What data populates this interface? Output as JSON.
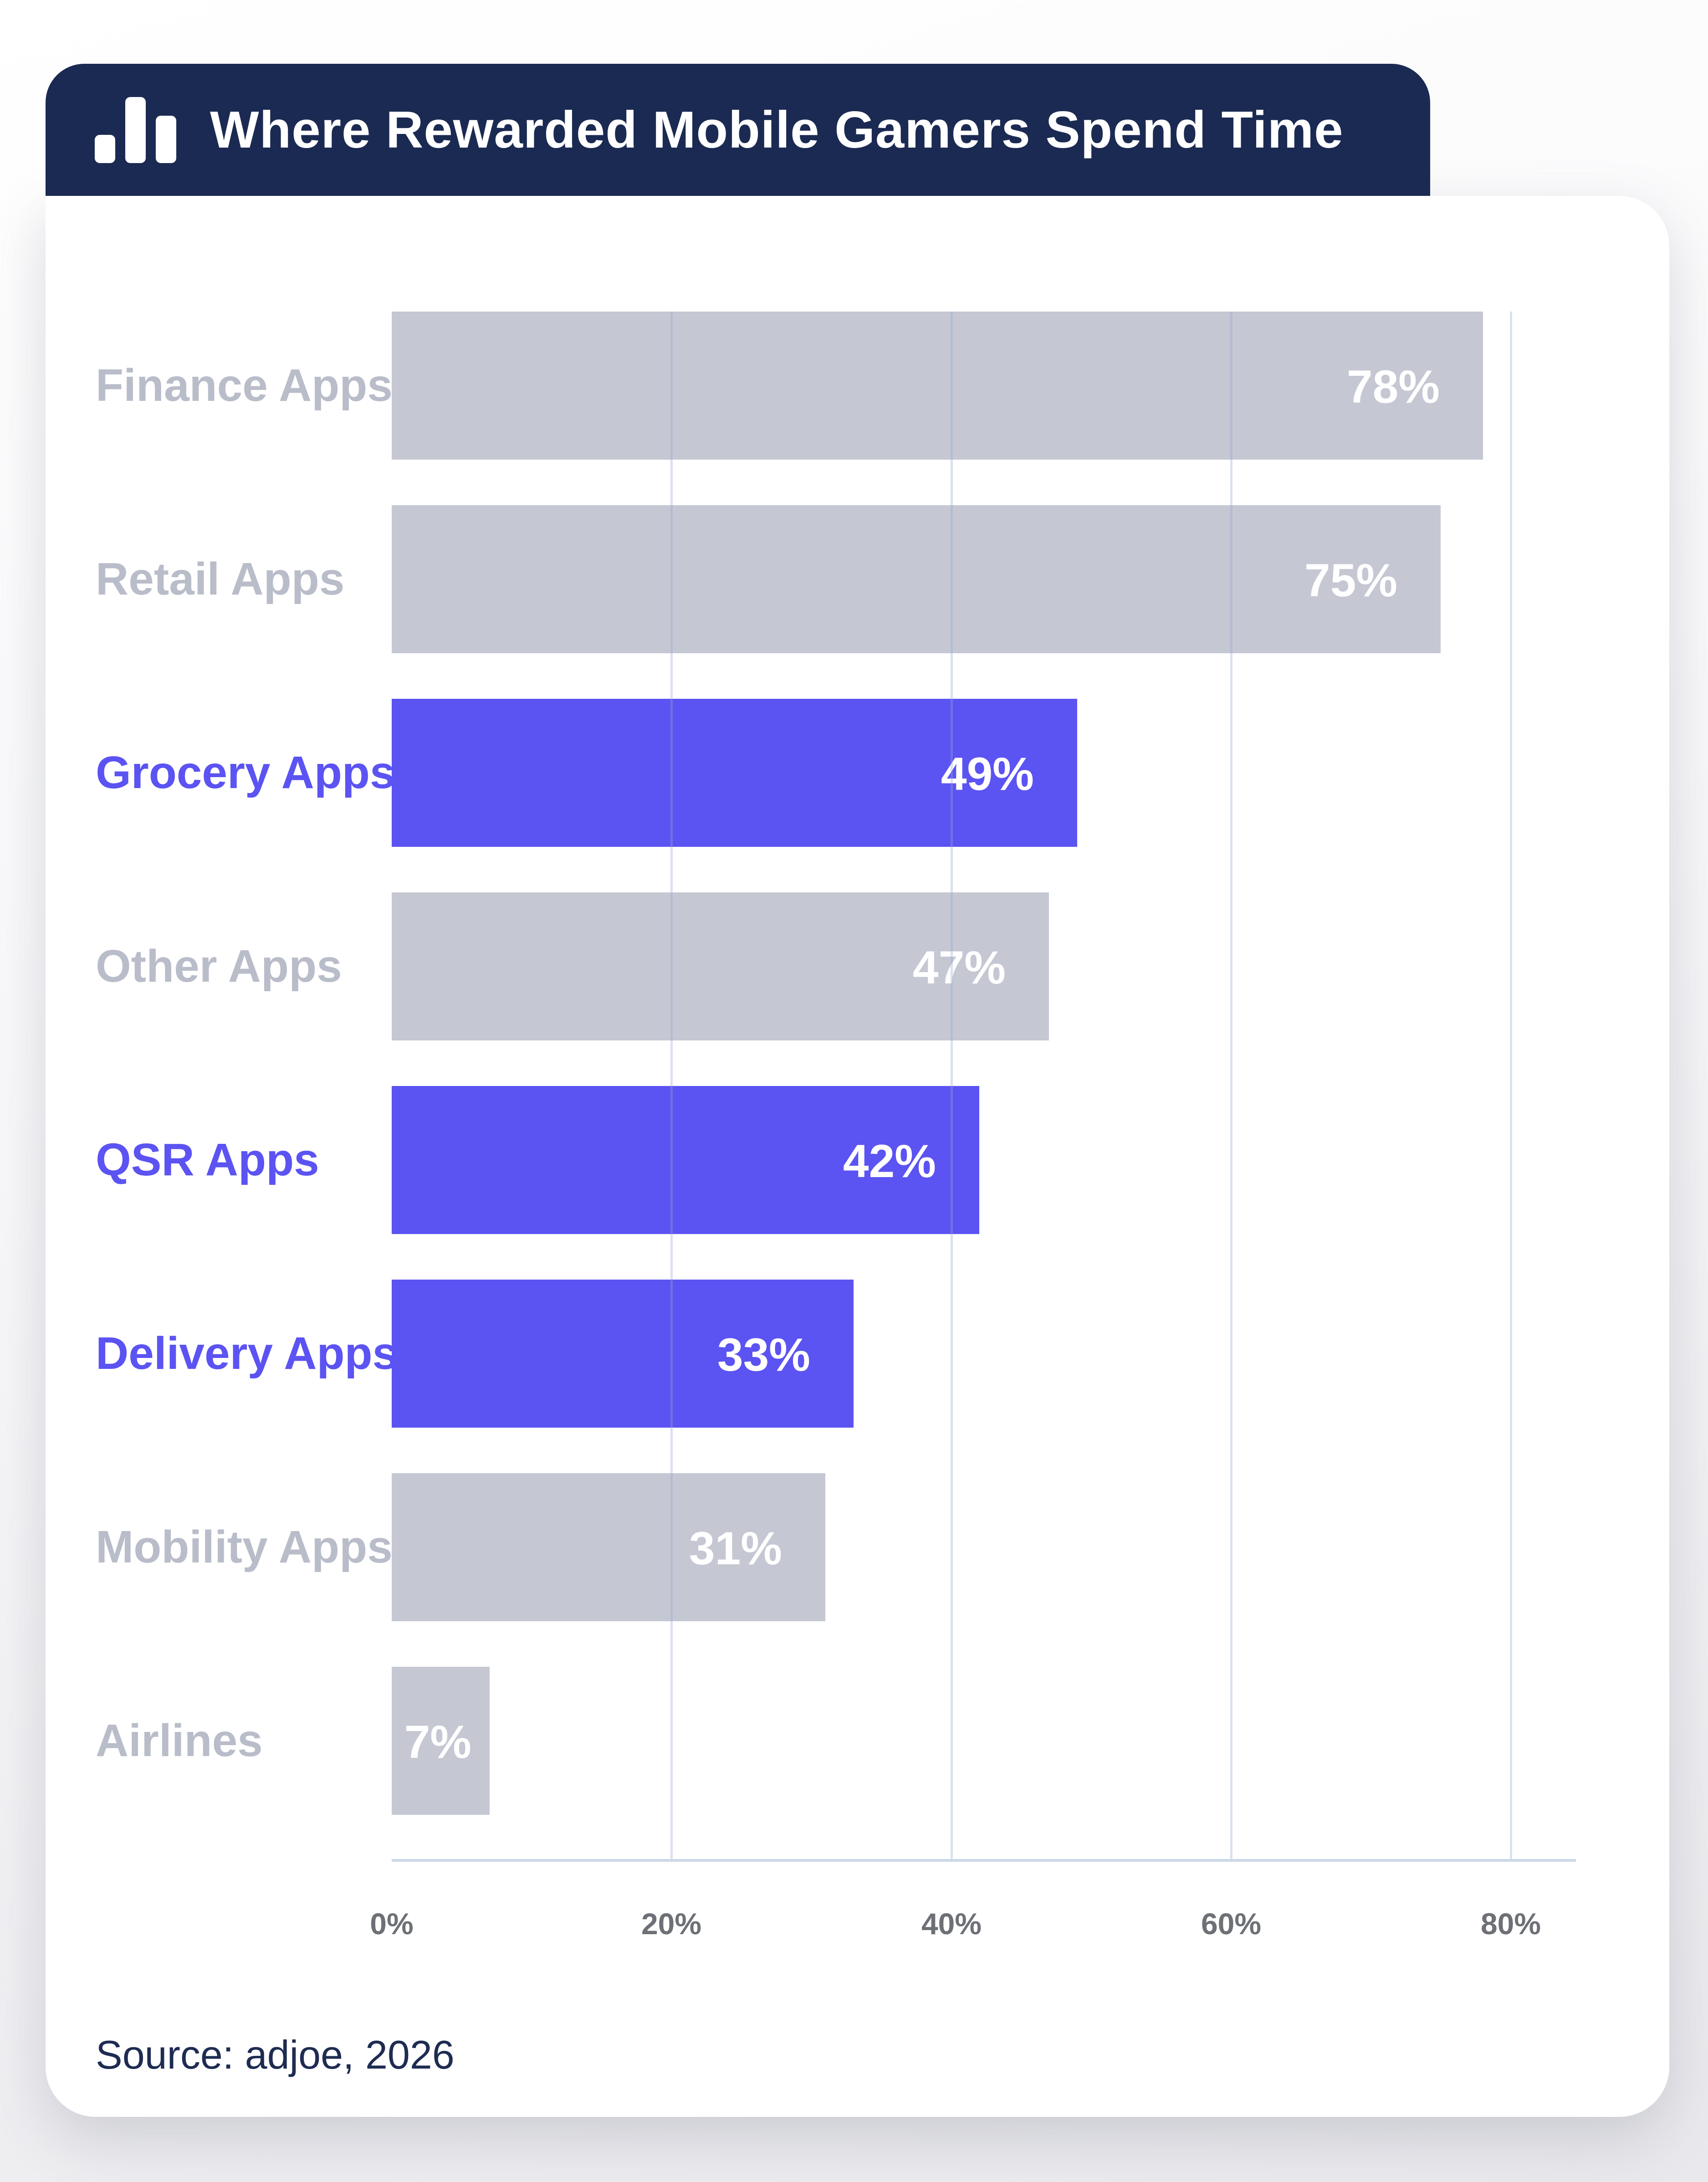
{
  "header": {
    "title": "Where Rewarded Mobile Gamers Spend Time",
    "icon": "bar-chart-icon",
    "bg_color": "#1b2a52",
    "text_color": "#ffffff"
  },
  "chart_data": {
    "type": "bar",
    "orientation": "horizontal",
    "title": "Where Rewarded Mobile Gamers Spend Time",
    "categories": [
      "Finance Apps",
      "Retail Apps",
      "Grocery Apps",
      "Other Apps",
      "QSR Apps",
      "Delivery Apps",
      "Mobility Apps",
      "Airlines"
    ],
    "values": [
      78,
      75,
      49,
      47,
      42,
      33,
      31,
      7
    ],
    "value_labels": [
      "78%",
      "75%",
      "49%",
      "47%",
      "42%",
      "33%",
      "31%",
      "7%"
    ],
    "highlighted": [
      false,
      false,
      true,
      false,
      true,
      true,
      false,
      false
    ],
    "x_ticks": [
      "0%",
      "20%",
      "40%",
      "60%",
      "80%"
    ],
    "xlabel": "",
    "ylabel": "",
    "xlim": [
      0,
      80
    ],
    "grid": true,
    "legend": "none",
    "colors": {
      "bar_default": "#c5c8d3",
      "bar_highlight": "#5b53f2",
      "label_default": "#b9bdc9",
      "label_highlight": "#5b53f2",
      "value_text": "#ffffff",
      "tick_text": "#6d7076",
      "gridline": "#cdd8ea",
      "axis_line": "#ccd8e8"
    }
  },
  "footer": {
    "source": "Source: adjoe, 2026",
    "text_color": "#1e2c52"
  }
}
